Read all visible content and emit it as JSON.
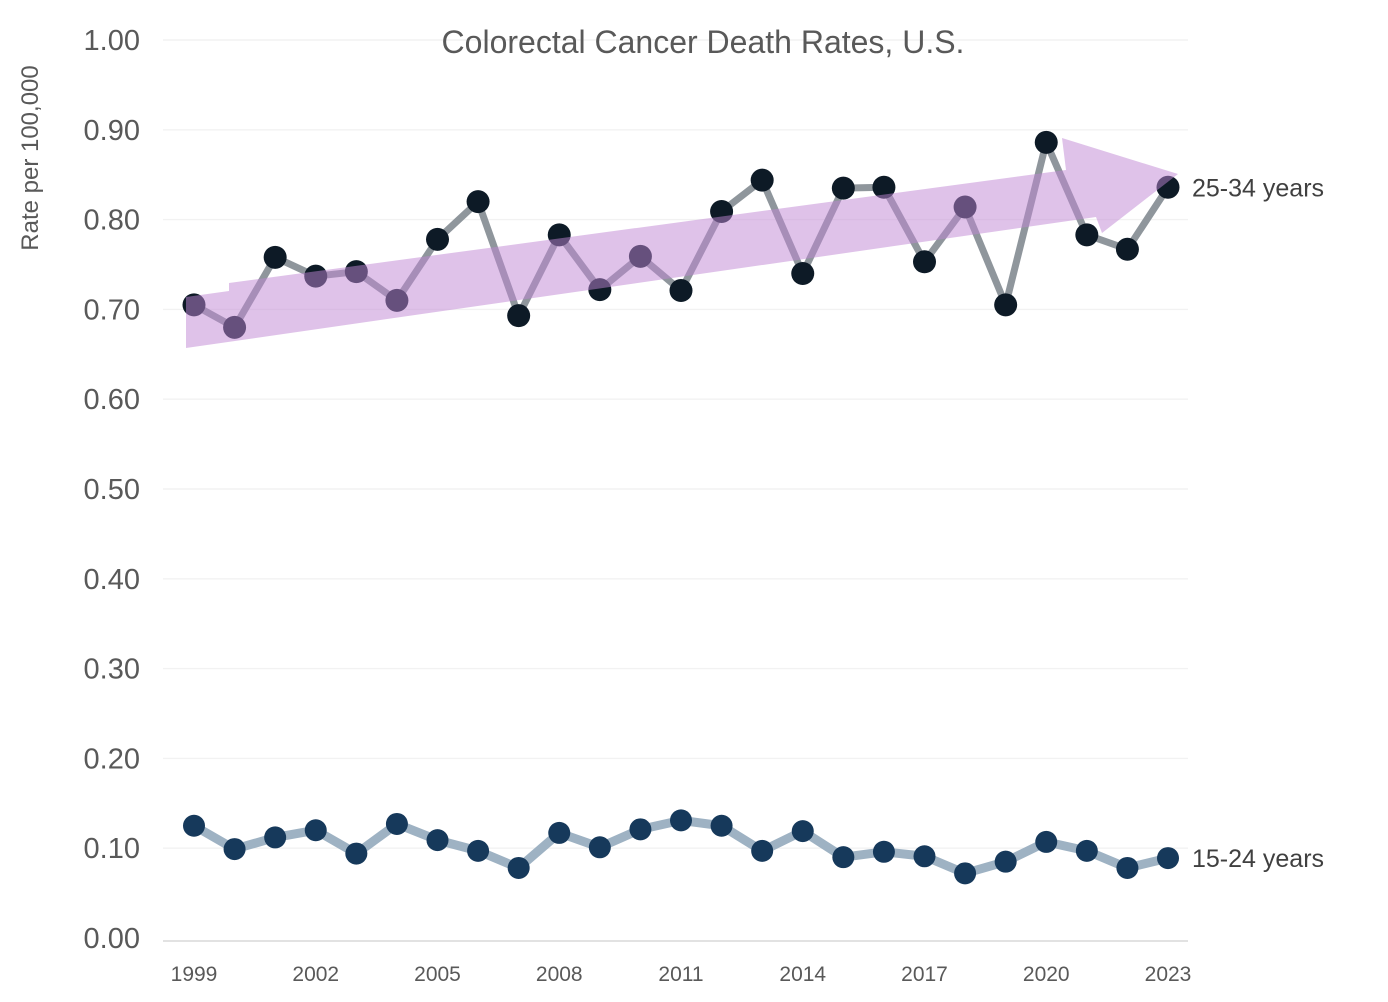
{
  "page": {
    "background": "#FFFFFF"
  },
  "chart_data": {
    "type": "line",
    "title": "Colorectal Cancer Death Rates, U.S.",
    "ylabel": "Rate per 100,000",
    "xlabel": "",
    "ylim": [
      0,
      1.0
    ],
    "grid": true,
    "legend_position": "right-end-of-line",
    "x": [
      1999,
      2000,
      2001,
      2002,
      2003,
      2004,
      2005,
      2006,
      2007,
      2008,
      2009,
      2010,
      2011,
      2012,
      2013,
      2014,
      2015,
      2016,
      2017,
      2018,
      2019,
      2020,
      2021,
      2022,
      2023
    ],
    "xtick_labels": [
      "1999",
      "2002",
      "2005",
      "2008",
      "2011",
      "2014",
      "2017",
      "2020",
      "2023"
    ],
    "ytick_labels": [
      "0.00",
      "0.10",
      "0.20",
      "0.30",
      "0.40",
      "0.50",
      "0.60",
      "0.70",
      "0.80",
      "0.90",
      "1.00"
    ],
    "series": [
      {
        "name": "25-34 years",
        "values": [
          0.705,
          0.68,
          0.758,
          0.737,
          0.742,
          0.71,
          0.778,
          0.82,
          0.693,
          0.783,
          0.722,
          0.759,
          0.721,
          0.809,
          0.844,
          0.74,
          0.835,
          0.836,
          0.753,
          0.814,
          0.705,
          0.886,
          0.783,
          0.767,
          0.836
        ],
        "line_color": "#8F969C",
        "marker_color": "#0D1A26"
      },
      {
        "name": "15-24 years",
        "values": [
          0.125,
          0.099,
          0.112,
          0.12,
          0.094,
          0.127,
          0.109,
          0.097,
          0.078,
          0.117,
          0.101,
          0.121,
          0.131,
          0.125,
          0.097,
          0.119,
          0.09,
          0.096,
          0.091,
          0.072,
          0.085,
          0.107,
          0.097,
          0.078,
          0.089
        ],
        "line_color": "#9EB2C3",
        "marker_color": "#16395B"
      }
    ],
    "annotations": {
      "trend_arrow": {
        "description": "upward trend block arrow overlaying the 25-34 years series",
        "color": "#BF85D3",
        "opacity": 0.5
      }
    },
    "text_colors": {
      "title": "#595959",
      "axis": "#595959",
      "series_labels": "#404040"
    },
    "gridline_color": "#F2F2F2",
    "axisline_color": "#D8D8D8"
  }
}
